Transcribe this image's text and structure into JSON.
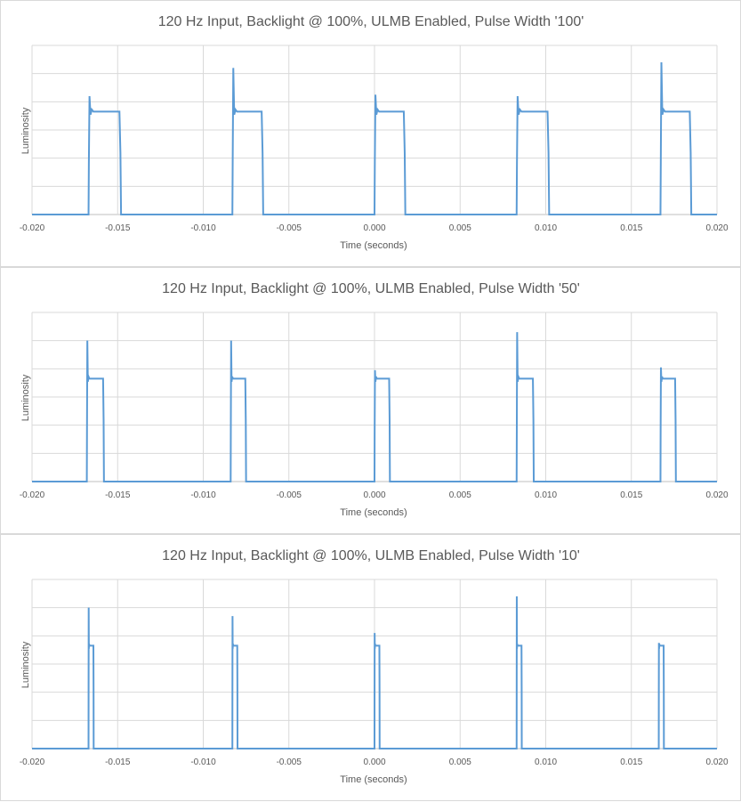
{
  "colors": {
    "series": "#5b9bd5",
    "grid": "#d9d9d9",
    "axis": "#bfbfbf",
    "text": "#595959"
  },
  "chart_data": [
    {
      "type": "line",
      "title": "120 Hz Input, Backlight @ 100%, ULMB Enabled, Pulse Width '100'",
      "xlabel": "Time (seconds)",
      "ylabel": "Luminosity",
      "xlim": [
        -0.02,
        0.02
      ],
      "ylim": [
        0,
        6
      ],
      "x_ticks": [
        "-0.020",
        "-0.015",
        "-0.010",
        "-0.005",
        "0.000",
        "0.005",
        "0.010",
        "0.015",
        "0.020"
      ],
      "grid": true,
      "legend": "none",
      "pulses": [
        {
          "start": -0.0167,
          "end": -0.0148,
          "plateau": 3.65,
          "peak": 4.2
        },
        {
          "start": -0.0083,
          "end": -0.0065,
          "plateau": 3.65,
          "peak": 5.2
        },
        {
          "start": 0.0,
          "end": 0.0018,
          "plateau": 3.65,
          "peak": 4.25
        },
        {
          "start": 0.0083,
          "end": 0.0102,
          "plateau": 3.65,
          "peak": 4.2
        },
        {
          "start": 0.0167,
          "end": 0.0185,
          "plateau": 3.65,
          "peak": 5.4
        }
      ]
    },
    {
      "type": "line",
      "title": "120 Hz Input, Backlight @ 100%, ULMB Enabled, Pulse Width '50'",
      "xlabel": "Time (seconds)",
      "ylabel": "Luminosity",
      "xlim": [
        -0.02,
        0.02
      ],
      "ylim": [
        0,
        6
      ],
      "x_ticks": [
        "-0.020",
        "-0.015",
        "-0.010",
        "-0.005",
        "0.000",
        "0.005",
        "0.010",
        "0.015",
        "0.020"
      ],
      "grid": true,
      "legend": "none",
      "pulses": [
        {
          "start": -0.0168,
          "end": -0.0158,
          "plateau": 3.65,
          "peak": 5.0
        },
        {
          "start": -0.0084,
          "end": -0.0075,
          "plateau": 3.65,
          "peak": 5.0
        },
        {
          "start": 0.0,
          "end": 0.0009,
          "plateau": 3.65,
          "peak": 3.95
        },
        {
          "start": 0.0083,
          "end": 0.0093,
          "plateau": 3.65,
          "peak": 5.3
        },
        {
          "start": 0.0167,
          "end": 0.0176,
          "plateau": 3.65,
          "peak": 4.05
        }
      ]
    },
    {
      "type": "line",
      "title": "120 Hz Input, Backlight @ 100%, ULMB Enabled, Pulse Width '10'",
      "xlabel": "Time (seconds)",
      "ylabel": "Luminosity",
      "xlim": [
        -0.02,
        0.02
      ],
      "ylim": [
        0,
        6
      ],
      "x_ticks": [
        "-0.020",
        "-0.015",
        "-0.010",
        "-0.005",
        "0.000",
        "0.005",
        "0.010",
        "0.015",
        "0.020"
      ],
      "grid": true,
      "legend": "none",
      "pulses": [
        {
          "start": -0.0167,
          "end": -0.0164,
          "plateau": 3.65,
          "peak": 5.0
        },
        {
          "start": -0.0083,
          "end": -0.008,
          "plateau": 3.65,
          "peak": 4.7
        },
        {
          "start": 0.0,
          "end": 0.0003,
          "plateau": 3.65,
          "peak": 4.1
        },
        {
          "start": 0.0083,
          "end": 0.0086,
          "plateau": 3.65,
          "peak": 5.4
        },
        {
          "start": 0.0166,
          "end": 0.0169,
          "plateau": 3.65,
          "peak": 3.75
        }
      ]
    }
  ]
}
